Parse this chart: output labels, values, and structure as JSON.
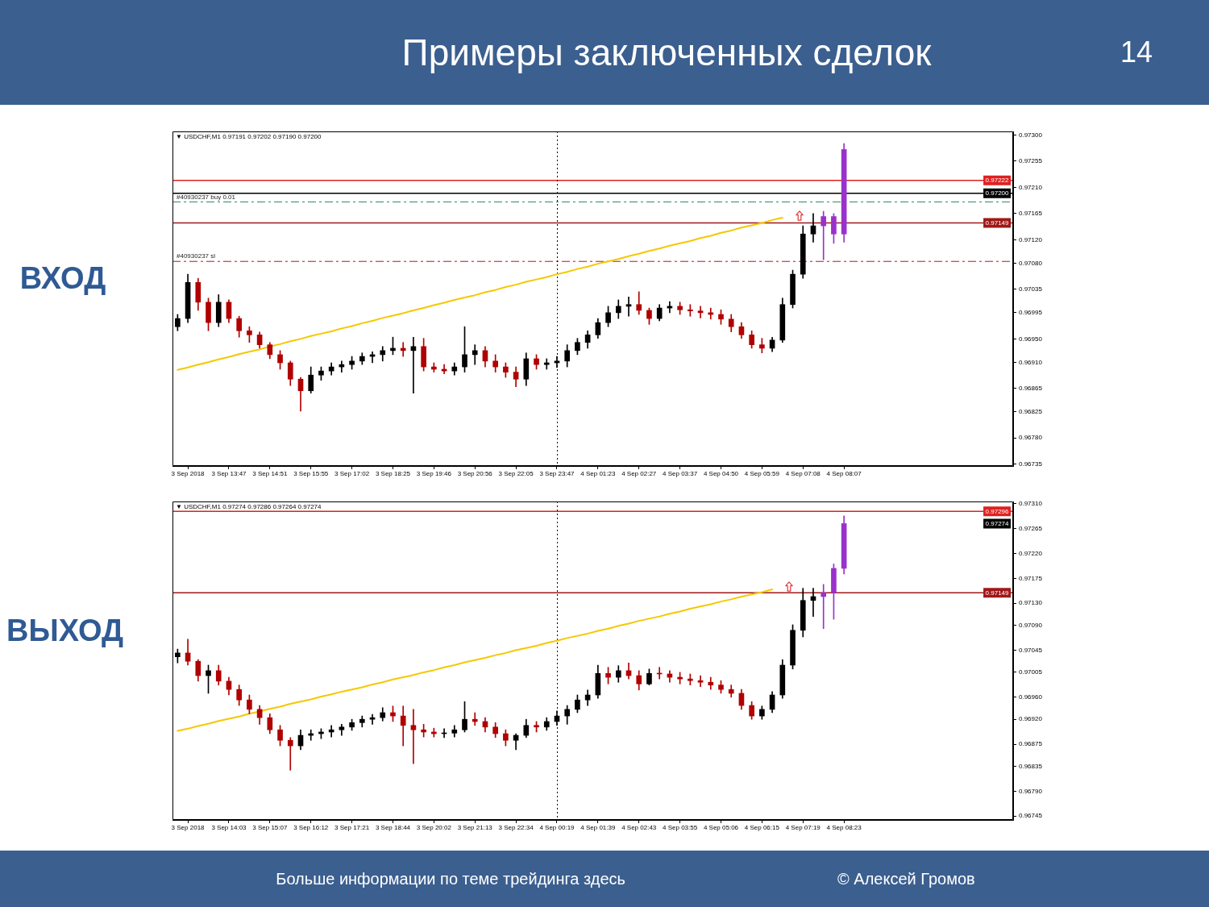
{
  "chart_data": [
    {
      "type": "other",
      "title": "Примеры заключенных сделок",
      "annotations": [
        "14"
      ]
    },
    {
      "type": "candlestick",
      "title": "ВХОД",
      "categories": [
        null,
        "3 Sep 2018",
        null,
        null,
        null,
        "3 Sep 13:47",
        null,
        null,
        null,
        "3 Sep 14:51",
        null,
        null,
        null,
        "3 Sep 15:55",
        null,
        null,
        null,
        "3 Sep 17:02",
        null,
        null,
        null,
        "3 Sep 18:25",
        null,
        null,
        null,
        "3 Sep 19:46",
        null,
        null,
        null,
        "3 Sep 20:56",
        null,
        null,
        null,
        "3 Sep 22:05",
        null,
        null,
        null,
        "3 Sep 23:47",
        null,
        null,
        null,
        "4 Sep 01:23",
        null,
        null,
        null,
        "4 Sep 02:27",
        null,
        null,
        null,
        "4 Sep 03:37",
        null,
        null,
        null,
        "4 Sep 04:50",
        null,
        null,
        null,
        "4 Sep 05:59",
        null,
        null,
        null,
        "4 Sep 07:08",
        null,
        null,
        null,
        "4 Sep 08:07",
        null,
        null,
        null,
        null,
        null,
        null,
        null,
        null,
        null,
        null,
        null,
        null,
        null,
        null,
        null,
        null
      ],
      "ohlc": [
        [
          0.96971,
          0.96992,
          0.96964,
          0.96985
        ],
        [
          0.96985,
          0.97061,
          0.96978,
          0.97047
        ],
        [
          0.97047,
          0.97054,
          0.96999,
          0.97013
        ],
        [
          0.97013,
          0.9702,
          0.96964,
          0.96978
        ],
        [
          0.96978,
          0.97026,
          0.96971,
          0.97013
        ],
        [
          0.97013,
          0.97017,
          0.96978,
          0.96985
        ],
        [
          0.96985,
          0.96989,
          0.96953,
          0.96964
        ],
        [
          0.96964,
          0.96971,
          0.96944,
          0.96957
        ],
        [
          0.96957,
          0.96962,
          0.96934,
          0.9694
        ],
        [
          0.9694,
          0.96944,
          0.96916,
          0.96923
        ],
        [
          0.96923,
          0.9693,
          0.96898,
          0.96909
        ],
        [
          0.96909,
          0.96912,
          0.9687,
          0.96881
        ],
        [
          0.96881,
          0.96884,
          0.96826,
          0.96861
        ],
        [
          0.96861,
          0.96902,
          0.96857,
          0.96888
        ],
        [
          0.96888,
          0.96902,
          0.96879,
          0.96895
        ],
        [
          0.96895,
          0.96909,
          0.96888,
          0.96902
        ],
        [
          0.96902,
          0.96912,
          0.96893,
          0.96906
        ],
        [
          0.96906,
          0.9692,
          0.96898,
          0.96912
        ],
        [
          0.96912,
          0.96926,
          0.96906,
          0.9692
        ],
        [
          0.9692,
          0.96928,
          0.96909,
          0.96923
        ],
        [
          0.96923,
          0.96937,
          0.96912,
          0.9693
        ],
        [
          0.9693,
          0.96953,
          0.96923,
          0.96934
        ],
        [
          0.96934,
          0.96944,
          0.9692,
          0.9693
        ],
        [
          0.9693,
          0.96953,
          0.96857,
          0.96937
        ],
        [
          0.96937,
          0.96951,
          0.96895,
          0.96902
        ],
        [
          0.96902,
          0.96909,
          0.96893,
          0.96898
        ],
        [
          0.96898,
          0.96906,
          0.9689,
          0.96895
        ],
        [
          0.96895,
          0.96909,
          0.96888,
          0.96902
        ],
        [
          0.96902,
          0.96971,
          0.96893,
          0.96923
        ],
        [
          0.96923,
          0.9694,
          0.96906,
          0.9693
        ],
        [
          0.9693,
          0.96937,
          0.96902,
          0.96912
        ],
        [
          0.96912,
          0.96923,
          0.96893,
          0.96902
        ],
        [
          0.96902,
          0.96909,
          0.96884,
          0.96893
        ],
        [
          0.96893,
          0.96902,
          0.96868,
          0.96881
        ],
        [
          0.96881,
          0.96926,
          0.9687,
          0.96916
        ],
        [
          0.96916,
          0.96923,
          0.96898,
          0.96906
        ],
        [
          0.96906,
          0.96916,
          0.96898,
          0.96909
        ],
        [
          0.96909,
          0.9692,
          0.96901,
          0.96912
        ],
        [
          0.96912,
          0.9694,
          0.96902,
          0.9693
        ],
        [
          0.9693,
          0.96951,
          0.96923,
          0.96944
        ],
        [
          0.96944,
          0.96964,
          0.96934,
          0.96957
        ],
        [
          0.96957,
          0.96985,
          0.96951,
          0.96978
        ],
        [
          0.96978,
          0.97006,
          0.96971,
          0.96995
        ],
        [
          0.96995,
          0.97017,
          0.96985,
          0.97006
        ],
        [
          0.97006,
          0.97022,
          0.96989,
          0.97009
        ],
        [
          0.97009,
          0.97031,
          0.96992,
          0.96999
        ],
        [
          0.96999,
          0.97003,
          0.96975,
          0.96985
        ],
        [
          0.96985,
          0.97009,
          0.96981,
          0.97003
        ],
        [
          0.97003,
          0.97014,
          0.96995,
          0.97006
        ],
        [
          0.97006,
          0.97013,
          0.96992,
          0.97
        ],
        [
          0.97,
          0.97009,
          0.96989,
          0.96998
        ],
        [
          0.96998,
          0.97006,
          0.96986,
          0.96995
        ],
        [
          0.96995,
          0.97003,
          0.96984,
          0.96992
        ],
        [
          0.96992,
          0.97,
          0.96975,
          0.96984
        ],
        [
          0.96984,
          0.96992,
          0.96962,
          0.96971
        ],
        [
          0.96971,
          0.96978,
          0.96951,
          0.96957
        ],
        [
          0.96957,
          0.96964,
          0.96934,
          0.9694
        ],
        [
          0.9694,
          0.96951,
          0.96926,
          0.96934
        ],
        [
          0.96934,
          0.96953,
          0.96928,
          0.96948
        ],
        [
          0.96948,
          0.9702,
          0.96944,
          0.97009
        ],
        [
          0.97009,
          0.97068,
          0.97003,
          0.97061
        ],
        [
          0.97061,
          0.97144,
          0.97054,
          0.9713
        ],
        [
          0.9713,
          0.97165,
          0.97116,
          0.97144
        ],
        [
          0.97144,
          0.97169,
          0.97086,
          0.9716
        ],
        [
          0.9716,
          0.97165,
          0.97114,
          0.9713
        ],
        [
          0.9713,
          0.97285,
          0.97116,
          0.97275
        ],
        null,
        null,
        null,
        null,
        null,
        null,
        null,
        null,
        null,
        null,
        null,
        null,
        null,
        null,
        null,
        null
      ],
      "colors": [
        "#000000",
        "#000000",
        "#b00000",
        "#b00000",
        "#000000",
        "#b00000",
        "#b00000",
        "#b00000",
        "#b00000",
        "#b00000",
        "#b00000",
        "#b00000",
        "#b00000",
        "#000000",
        "#000000",
        "#000000",
        "#000000",
        "#000000",
        "#000000",
        "#000000",
        "#000000",
        "#000000",
        "#b00000",
        "#000000",
        "#b00000",
        "#b00000",
        "#b00000",
        "#000000",
        "#000000",
        "#000000",
        "#b00000",
        "#b00000",
        "#b00000",
        "#b00000",
        "#000000",
        "#b00000",
        "#000000",
        "#000000",
        "#000000",
        "#000000",
        "#000000",
        "#000000",
        "#000000",
        "#000000",
        "#000000",
        "#b00000",
        "#b00000",
        "#000000",
        "#000000",
        "#b00000",
        "#b00000",
        "#b00000",
        "#b00000",
        "#b00000",
        "#b00000",
        "#b00000",
        "#b00000",
        "#b00000",
        "#000000",
        "#000000",
        "#000000",
        "#000000",
        "#000000",
        "#9932cc",
        "#9932cc",
        "#9932cc",
        null,
        null,
        null,
        null,
        null,
        null,
        null,
        null,
        null,
        null,
        null,
        null,
        null,
        null,
        null,
        null
      ],
      "series": [
        {
          "type": "line",
          "color": "#f5c800",
          "values": [
            0.96897,
            0.96901,
            0.96906,
            0.9691,
            0.96915,
            0.96919,
            0.96924,
            0.96928,
            0.96932,
            0.96937,
            0.96941,
            0.96946,
            0.9695,
            0.96955,
            0.96959,
            0.96963,
            0.96968,
            0.96972,
            0.96977,
            0.96981,
            0.96986,
            0.9699,
            0.96994,
            0.96999,
            0.97003,
            0.97008,
            0.97012,
            0.97017,
            0.97021,
            0.97025,
            0.9703,
            0.97034,
            0.97039,
            0.97043,
            0.97048,
            0.97052,
            0.97056,
            0.97061,
            0.97065,
            0.9707,
            0.97074,
            0.97079,
            0.97083,
            0.97087,
            0.97092,
            0.97096,
            0.97101,
            0.97105,
            0.9711,
            0.97114,
            0.97118,
            0.97123,
            0.97127,
            0.97132,
            0.97136,
            0.97141,
            0.97145,
            0.97149,
            0.97154,
            0.97158,
            null,
            null,
            null,
            null,
            null,
            null,
            null,
            null,
            null,
            null,
            null,
            null,
            null,
            null,
            null,
            null,
            null,
            null,
            null,
            null,
            null,
            null
          ]
        }
      ],
      "ylim": [
        0.96732,
        0.97306
      ],
      "yticks": [
        {
          "value": 0.973,
          "label": "0.97300"
        },
        0.97255,
        {
          "value": 0.9721,
          "label": "0.97210"
        },
        0.97165,
        {
          "value": 0.9712,
          "label": "0.97120"
        },
        {
          "value": 0.9708,
          "label": "0.97080"
        },
        0.97035,
        0.96995,
        {
          "value": 0.9695,
          "label": "0.96950"
        },
        {
          "value": 0.9691,
          "label": "0.96910"
        },
        0.96865,
        0.96825,
        {
          "value": 0.9678,
          "label": "0.96780"
        },
        0.96735
      ],
      "ref_lines": [
        {
          "axis": "y",
          "value": 0.97222,
          "label": "0.97222",
          "color": "#e02020",
          "line_style": "solid"
        },
        {
          "axis": "y",
          "value": 0.972,
          "label": "0.97200",
          "color": "#000000",
          "line_style": "solid"
        },
        {
          "axis": "y",
          "value": 0.97185,
          "label": "#40930237 buy 0.01",
          "color": "#2e8b57",
          "line_style": "dashed"
        },
        {
          "axis": "y",
          "value": 0.97149,
          "label": "0.97149",
          "color": "#a01818",
          "line_style": "solid"
        },
        {
          "axis": "y",
          "value": 0.97083,
          "label": "#40930237 sl",
          "color": "#b01818",
          "line_style": "dashed"
        },
        {
          "axis": "x",
          "value": "3 Sep 23:47",
          "color": "#000000",
          "line_style": "dotted"
        }
      ],
      "annotations": [
        "▼ USDCHF,M1 0.97191 0.97202 0.97190 0.97200"
      ]
    },
    {
      "type": "candlestick",
      "title": "ВЫХОД",
      "categories": [
        null,
        "3 Sep 2018",
        null,
        null,
        null,
        "3 Sep 14:03",
        null,
        null,
        null,
        "3 Sep 15:07",
        null,
        null,
        null,
        "3 Sep 16:12",
        null,
        null,
        null,
        "3 Sep 17:21",
        null,
        null,
        null,
        "3 Sep 18:44",
        null,
        null,
        null,
        "3 Sep 20:02",
        null,
        null,
        null,
        "3 Sep 21:13",
        null,
        null,
        null,
        "3 Sep 22:34",
        null,
        null,
        null,
        "4 Sep 00:19",
        null,
        null,
        null,
        "4 Sep 01:39",
        null,
        null,
        null,
        "4 Sep 02:43",
        null,
        null,
        null,
        "4 Sep 03:55",
        null,
        null,
        null,
        "4 Sep 05:06",
        null,
        null,
        null,
        "4 Sep 06:15",
        null,
        null,
        null,
        "4 Sep 07:19",
        null,
        null,
        null,
        "4 Sep 08:23",
        null,
        null,
        null,
        null,
        null,
        null,
        null,
        null,
        null,
        null,
        null,
        null,
        null,
        null,
        null,
        null
      ],
      "ohlc": [
        [
          0.97033,
          0.97047,
          0.97022,
          0.9704
        ],
        [
          0.9704,
          0.97065,
          0.97018,
          0.97025
        ],
        [
          0.97025,
          0.97028,
          0.96989,
          0.96999
        ],
        [
          0.96999,
          0.97018,
          0.96967,
          0.97008
        ],
        [
          0.97008,
          0.97018,
          0.96982,
          0.96989
        ],
        [
          0.96989,
          0.96996,
          0.96964,
          0.96974
        ],
        [
          0.96974,
          0.96982,
          0.96945,
          0.96955
        ],
        [
          0.96955,
          0.96964,
          0.9693,
          0.96938
        ],
        [
          0.96938,
          0.96945,
          0.96911,
          0.96923
        ],
        [
          0.96923,
          0.9693,
          0.96894,
          0.96901
        ],
        [
          0.96901,
          0.96909,
          0.96872,
          0.96882
        ],
        [
          0.96882,
          0.96887,
          0.96828,
          0.96872
        ],
        [
          0.96872,
          0.96901,
          0.96865,
          0.96891
        ],
        [
          0.96891,
          0.96901,
          0.96882,
          0.96894
        ],
        [
          0.96894,
          0.96903,
          0.96885,
          0.96897
        ],
        [
          0.96897,
          0.96909,
          0.96888,
          0.96901
        ],
        [
          0.96901,
          0.96911,
          0.96891,
          0.96906
        ],
        [
          0.96906,
          0.9692,
          0.969,
          0.96914
        ],
        [
          0.96914,
          0.96926,
          0.96906,
          0.9692
        ],
        [
          0.9692,
          0.96929,
          0.96911,
          0.96923
        ],
        [
          0.96923,
          0.96941,
          0.96917,
          0.96932
        ],
        [
          0.96932,
          0.96944,
          0.96916,
          0.96926
        ],
        [
          0.96926,
          0.96944,
          0.96872,
          0.96909
        ],
        [
          0.96909,
          0.96938,
          0.9684,
          0.96901
        ],
        [
          0.96901,
          0.96911,
          0.96888,
          0.96897
        ],
        [
          0.96897,
          0.96904,
          0.96888,
          0.96894
        ],
        [
          0.96894,
          0.96903,
          0.96887,
          0.96895
        ],
        [
          0.96895,
          0.96909,
          0.96888,
          0.96901
        ],
        [
          0.96901,
          0.96952,
          0.96897,
          0.9692
        ],
        [
          0.9692,
          0.96932,
          0.96909,
          0.96916
        ],
        [
          0.96916,
          0.96923,
          0.96897,
          0.96906
        ],
        [
          0.96906,
          0.96914,
          0.96887,
          0.96894
        ],
        [
          0.96894,
          0.96901,
          0.96872,
          0.96882
        ],
        [
          0.96882,
          0.96894,
          0.96865,
          0.96891
        ],
        [
          0.96891,
          0.9692,
          0.96887,
          0.96909
        ],
        [
          0.96909,
          0.96916,
          0.96897,
          0.96906
        ],
        [
          0.96906,
          0.96923,
          0.969,
          0.96916
        ],
        [
          0.96916,
          0.96935,
          0.96909,
          0.96926
        ],
        [
          0.96926,
          0.96945,
          0.96911,
          0.96938
        ],
        [
          0.96938,
          0.96964,
          0.96932,
          0.96955
        ],
        [
          0.96955,
          0.96973,
          0.96945,
          0.96964
        ],
        [
          0.96964,
          0.97018,
          0.96958,
          0.97003
        ],
        [
          0.97003,
          0.97014,
          0.96984,
          0.96996
        ],
        [
          0.96996,
          0.97017,
          0.96987,
          0.97008
        ],
        [
          0.97008,
          0.97022,
          0.96993,
          0.96999
        ],
        [
          0.96999,
          0.97008,
          0.96973,
          0.96984
        ],
        [
          0.96984,
          0.97011,
          0.96982,
          0.97003
        ],
        [
          0.97003,
          0.97014,
          0.96993,
          0.97002
        ],
        [
          0.97002,
          0.97008,
          0.96987,
          0.96996
        ],
        [
          0.96996,
          0.97005,
          0.96984,
          0.96993
        ],
        [
          0.96993,
          0.97002,
          0.96982,
          0.9699
        ],
        [
          0.9699,
          0.96999,
          0.96979,
          0.96987
        ],
        [
          0.96987,
          0.96996,
          0.96974,
          0.96982
        ],
        [
          0.96982,
          0.9699,
          0.96967,
          0.96974
        ],
        [
          0.96974,
          0.96982,
          0.9696,
          0.96967
        ],
        [
          0.96967,
          0.96974,
          0.96938,
          0.96945
        ],
        [
          0.96945,
          0.96952,
          0.9692,
          0.96926
        ],
        [
          0.96926,
          0.96944,
          0.9692,
          0.96938
        ],
        [
          0.96938,
          0.9697,
          0.96932,
          0.96964
        ],
        [
          0.96964,
          0.97028,
          0.96958,
          0.97018
        ],
        [
          0.97018,
          0.97091,
          0.97011,
          0.97081
        ],
        [
          0.97081,
          0.97157,
          0.97069,
          0.97135
        ],
        [
          0.97135,
          0.97157,
          0.97106,
          0.97142
        ],
        [
          0.97142,
          0.97164,
          0.97084,
          0.97149
        ],
        [
          0.97149,
          0.97201,
          0.97101,
          0.97193
        ],
        [
          0.97193,
          0.97288,
          0.97183,
          0.97274
        ],
        null,
        null,
        null,
        null,
        null,
        null,
        null,
        null,
        null,
        null,
        null,
        null,
        null,
        null,
        null,
        null
      ],
      "colors": [
        "#000000",
        "#b00000",
        "#b00000",
        "#000000",
        "#b00000",
        "#b00000",
        "#b00000",
        "#b00000",
        "#b00000",
        "#b00000",
        "#b00000",
        "#b00000",
        "#000000",
        "#000000",
        "#000000",
        "#000000",
        "#000000",
        "#000000",
        "#000000",
        "#000000",
        "#000000",
        "#b00000",
        "#b00000",
        "#b00000",
        "#b00000",
        "#b00000",
        "#000000",
        "#000000",
        "#000000",
        "#b00000",
        "#b00000",
        "#b00000",
        "#b00000",
        "#000000",
        "#000000",
        "#b00000",
        "#000000",
        "#000000",
        "#000000",
        "#000000",
        "#000000",
        "#000000",
        "#b00000",
        "#000000",
        "#b00000",
        "#b00000",
        "#000000",
        "#b00000",
        "#b00000",
        "#b00000",
        "#b00000",
        "#b00000",
        "#b00000",
        "#b00000",
        "#b00000",
        "#b00000",
        "#b00000",
        "#000000",
        "#000000",
        "#000000",
        "#000000",
        "#000000",
        "#000000",
        "#9932cc",
        "#9932cc",
        "#9932cc",
        null,
        null,
        null,
        null,
        null,
        null,
        null,
        null,
        null,
        null,
        null,
        null,
        null,
        null,
        null,
        null
      ],
      "series": [
        {
          "type": "line",
          "color": "#f5c800",
          "values": [
            0.96899,
            0.96903,
            0.96908,
            0.96912,
            0.96917,
            0.96921,
            0.96925,
            0.9693,
            0.96934,
            0.96939,
            0.96943,
            0.96948,
            0.96952,
            0.96956,
            0.96961,
            0.96965,
            0.9697,
            0.96974,
            0.96978,
            0.96983,
            0.96987,
            0.96992,
            0.96996,
            0.97,
            0.97005,
            0.97009,
            0.97014,
            0.97018,
            0.97023,
            0.97027,
            0.97031,
            0.97036,
            0.9704,
            0.97045,
            0.97049,
            0.97053,
            0.97058,
            0.97062,
            0.97067,
            0.97071,
            0.97075,
            0.9708,
            0.97084,
            0.97089,
            0.97093,
            0.97098,
            0.97102,
            0.97106,
            0.97111,
            0.97115,
            0.9712,
            0.97124,
            0.97128,
            0.97133,
            0.97137,
            0.97142,
            0.97146,
            0.9715,
            0.97155,
            null,
            null,
            null,
            null,
            null,
            null,
            null,
            null,
            null,
            null,
            null,
            null,
            null,
            null,
            null,
            null,
            null,
            null,
            null,
            null,
            null,
            null,
            null
          ]
        }
      ],
      "ylim": [
        0.96738,
        0.97314
      ],
      "yticks": [
        {
          "value": 0.9731,
          "label": "0.97310"
        },
        0.97265,
        {
          "value": 0.9722,
          "label": "0.97220"
        },
        0.97175,
        {
          "value": 0.9713,
          "label": "0.97130"
        },
        {
          "value": 0.9709,
          "label": "0.97090"
        },
        0.97045,
        0.97005,
        {
          "value": 0.9696,
          "label": "0.96960"
        },
        {
          "value": 0.9692,
          "label": "0.96920"
        },
        0.96875,
        0.96835,
        {
          "value": 0.9679,
          "label": "0.96790"
        },
        0.96745
      ],
      "ref_lines": [
        {
          "axis": "y",
          "value": 0.97296,
          "label": "0.97296",
          "color": "#e02020",
          "line_style": "solid"
        },
        {
          "axis": "y",
          "value": 0.97149,
          "label": "0.97149",
          "color": "#a01818",
          "line_style": "solid"
        },
        {
          "axis": "x",
          "value": "4 Sep 00:19",
          "color": "#000000",
          "line_style": "dotted"
        }
      ],
      "annotations": [
        "▼ USDCHF,M1 0.97274 0.97286 0.97264 0.97274",
        {
          "text": "0.97274",
          "y": 0.97274
        }
      ]
    },
    {
      "type": "other",
      "annotations": [
        "Больше информации по теме трейдинга здесь",
        "© Алексей Громов"
      ]
    }
  ]
}
